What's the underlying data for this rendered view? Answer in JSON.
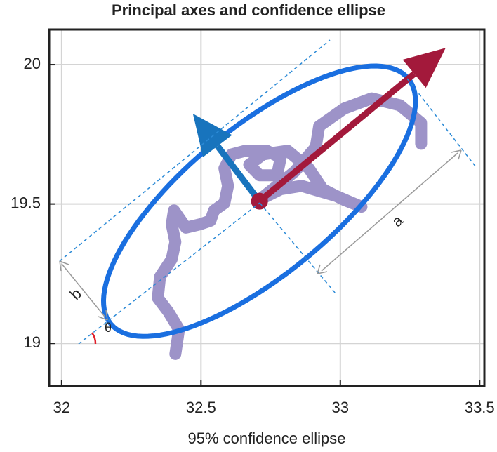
{
  "chart_data": {
    "type": "line",
    "title": "Principal axes and confidence ellipse",
    "xlabel": "95% confidence ellipse",
    "x": [
      32.408,
      32.421,
      32.383,
      32.345,
      32.353,
      32.395,
      32.408,
      32.395,
      32.403,
      32.446,
      32.496,
      32.534,
      32.547,
      32.584,
      32.597,
      32.584,
      32.61,
      32.66,
      32.736,
      32.786,
      32.773,
      32.71,
      32.673,
      32.723,
      32.811,
      32.887,
      32.937,
      33.013,
      33.076,
      32.987,
      32.861,
      32.786,
      32.71,
      32.836,
      32.912,
      32.924,
      33.013,
      33.113,
      33.214,
      33.29,
      33.29
    ],
    "values": [
      18.962,
      19.05,
      19.113,
      19.163,
      19.239,
      19.302,
      19.364,
      19.427,
      19.477,
      19.415,
      19.427,
      19.44,
      19.477,
      19.503,
      19.565,
      19.628,
      19.678,
      19.691,
      19.691,
      19.666,
      19.603,
      19.603,
      19.641,
      19.678,
      19.691,
      19.628,
      19.553,
      19.515,
      19.49,
      19.528,
      19.565,
      19.553,
      19.515,
      19.616,
      19.704,
      19.779,
      19.842,
      19.879,
      19.854,
      19.791,
      19.716
    ],
    "color": "#9d93c8",
    "ellipse": {
      "center": [
        32.71,
        19.51
      ],
      "major_end": [
        33.244,
        19.95
      ],
      "minor_end": [
        32.542,
        19.714
      ],
      "color": "#1a6fe0"
    },
    "arrows": [
      {
        "end": [
          33.378,
          20.06
        ],
        "color": "#a3193b"
      },
      {
        "end": [
          32.471,
          19.824
        ],
        "color": "#1874bd"
      }
    ],
    "annotations": [
      "a",
      "b",
      "θ"
    ],
    "xlim": [
      31.955,
      33.517
    ],
    "ylim": [
      18.847,
      20.126
    ],
    "xticks": [
      32,
      32.5,
      33,
      33.5
    ],
    "yticks": [
      19,
      19.5,
      20
    ],
    "grid": true
  }
}
